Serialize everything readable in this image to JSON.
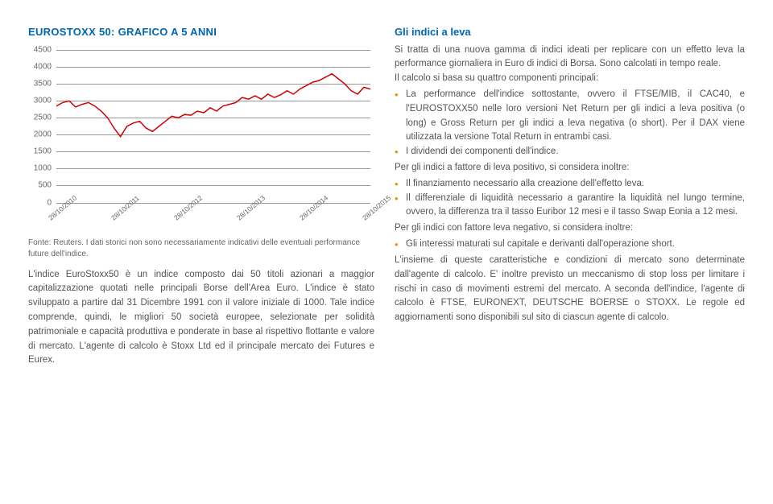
{
  "chart": {
    "title": "EUROSTOXX 50: GRAFICO A 5 ANNI",
    "type": "line",
    "y_ticks": [
      0,
      500,
      1000,
      1500,
      2000,
      2500,
      3000,
      3500,
      4000,
      4500
    ],
    "ylim": [
      0,
      4500
    ],
    "x_labels": [
      "28/10/2010",
      "28/10/2011",
      "28/10/2012",
      "28/10/2013",
      "28/10/2014",
      "28/10/2015"
    ],
    "values": [
      2850,
      2950,
      3000,
      2820,
      2900,
      2950,
      2850,
      2700,
      2500,
      2200,
      1950,
      2250,
      2350,
      2400,
      2200,
      2100,
      2250,
      2400,
      2550,
      2500,
      2600,
      2580,
      2700,
      2650,
      2800,
      2700,
      2850,
      2900,
      2950,
      3100,
      3050,
      3150,
      3050,
      3200,
      3100,
      3180,
      3300,
      3200,
      3350,
      3450,
      3550,
      3600,
      3700,
      3800,
      3650,
      3500,
      3300,
      3200,
      3400,
      3350
    ],
    "line_color": "#d20000",
    "line_width": 1.5,
    "grid_color": "#999999",
    "label_color": "#666666",
    "label_fontsize": 10,
    "background_color": "#ffffff"
  },
  "source_note": "Fonte: Reuters. I dati storici non sono necessariamente indicativi delle eventuali performance future dell'indice.",
  "left_body": "L'indice EuroStoxx50 è un indice composto dai 50 titoli azionari a maggior capitalizzazione quotati nelle principali Borse dell'Area Euro. L'indice è stato sviluppato a partire dal 31 Dicembre 1991 con il valore iniziale di 1000. Tale indice comprende, quindi, le migliori 50 società europee, selezionate per solidità patrimoniale e capacità produttiva e ponderate in base al rispettivo flottante e valore di mercato. L'agente di calcolo è Stoxx Ltd ed il principale mercato dei Futures e Eurex.",
  "right": {
    "title": "Gli indici a leva",
    "intro": "Si tratta di una nuova gamma di indici ideati per replicare con un effetto leva la performance giornaliera in Euro di indici di Borsa. Sono calcolati in tempo reale.",
    "calc_intro": "Il calcolo si basa su quattro componenti principali:",
    "calc_bullets": [
      "La performance dell'indice sottostante, ovvero il FTSE/MIB, il CAC40, e l'EUROSTOXX50 nelle loro versioni Net Return per gli indici a leva positiva (o long) e Gross Return per gli indici a leva negativa (o short). Per il DAX viene utilizzata la versione Total Return in entrambi casi.",
      "I dividendi dei componenti dell'indice."
    ],
    "pos_intro": "Per gli indici a fattore di leva positivo, si considera inoltre:",
    "pos_bullets": [
      "Il finanziamento necessario alla creazione dell'effetto leva.",
      "Il differenziale di liquidità necessario a garantire la liquidità nel lungo termine, ovvero, la differenza tra il tasso Euribor 12 mesi e il tasso Swap Eonia a 12 mesi."
    ],
    "neg_intro": "Per gli indici con fattore leva negativo, si considera inoltre:",
    "neg_bullets": [
      "Gli interessi maturati sul capitale e derivanti dall'operazione short."
    ],
    "closing": "L'insieme di queste caratteristiche e condizioni di mercato sono determinate dall'agente di calcolo. E' inoltre previsto un meccanismo di stop loss per limitare i rischi in caso di movimenti estremi del mercato. A seconda dell'indice, l'agente di calcolo è FTSE, EURONEXT, DEUTSCHE BOERSE o STOXX. Le regole ed aggiornamenti sono disponibili sul sito di ciascun agente di calcolo."
  }
}
